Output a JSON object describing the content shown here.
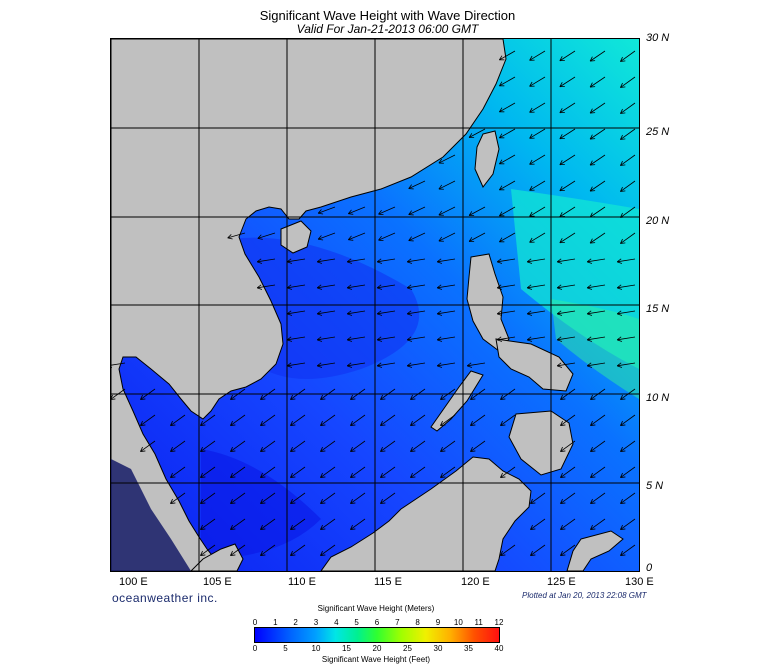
{
  "title": "Significant Wave Height with Wave Direction",
  "subtitle": "Valid For Jan-21-2013 06:00 GMT",
  "brand": "oceanweather inc.",
  "plotted": "Plotted at Jan 20, 2013 22:08 GMT",
  "lat_labels": [
    "30 N",
    "25 N",
    "20 N",
    "15 N",
    "10 N",
    "5 N",
    "0"
  ],
  "lon_labels": [
    "100 E",
    "105 E",
    "110 E",
    "115 E",
    "120 E",
    "125 E",
    "130 E"
  ],
  "colorbar": {
    "title_meters": "Significant Wave Height (Meters)",
    "title_feet": "Significant Wave Height (Feet)",
    "meters_ticks": [
      "0",
      "1",
      "2",
      "3",
      "4",
      "5",
      "6",
      "7",
      "8",
      "9",
      "10",
      "11",
      "12"
    ],
    "feet_ticks": [
      "0",
      "5",
      "10",
      "15",
      "20",
      "25",
      "30",
      "35",
      "40"
    ]
  },
  "colors": {
    "land": "#c0c0c0",
    "coast": "#000000",
    "sea_low": "#1e3cff",
    "sea_mid": "#0090ff",
    "sea_high": "#10e0d0"
  }
}
